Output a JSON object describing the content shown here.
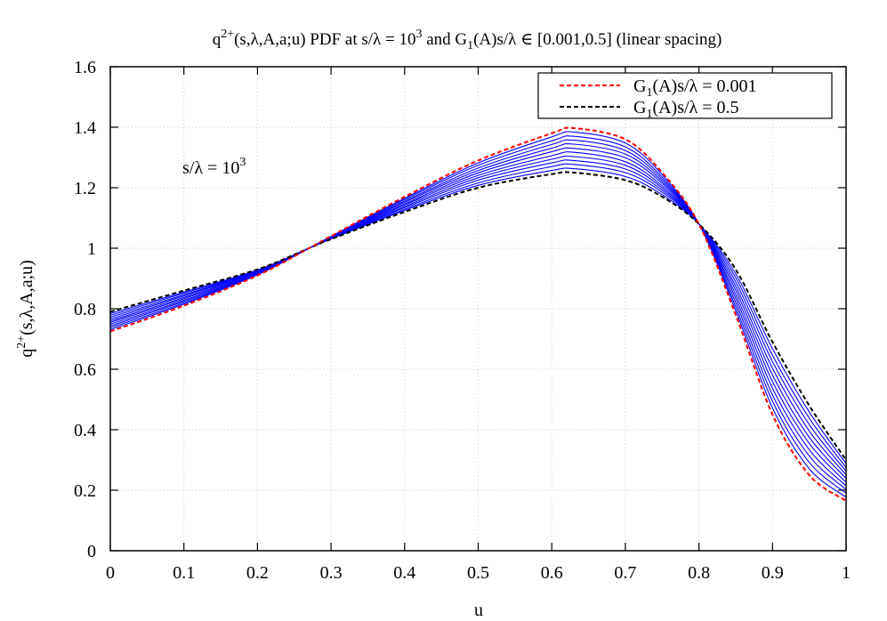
{
  "chart_data": {
    "type": "line",
    "title": "q^{2+}(s,λ,A,a;u) PDF at s/λ = 10^3 and G_1(A)s/λ ∈ [0.001,0.5] (linear spacing)",
    "title_parts": {
      "a": "q",
      "a_sup": "2+",
      "b": "(s,λ,A,a;u) PDF at s/λ = 10",
      "b_sup": "3",
      "c": " and G",
      "c_sub": "1",
      "d": "(A)s/λ ∈  [0.001,0.5] (linear spacing)"
    },
    "xlabel": "u",
    "ylabel": "q^{2+}(s,λ,A,a;u)",
    "ylabel_parts": {
      "a": "q",
      "sup": "2+",
      "b": "(s,λ,A,a;u)"
    },
    "annotation": {
      "text": "s/λ = 10^3",
      "a": "s/λ = 10",
      "sup": "3"
    },
    "xlim": [
      0,
      1
    ],
    "ylim": [
      0,
      1.6
    ],
    "xticks": [
      "0",
      "0.1",
      "0.2",
      "0.3",
      "0.4",
      "0.5",
      "0.6",
      "0.7",
      "0.8",
      "0.9",
      "1"
    ],
    "yticks": [
      "0",
      "0.2",
      "0.4",
      "0.6",
      "0.8",
      "1",
      "1.2",
      "1.4",
      "1.6"
    ],
    "grid": true,
    "legend_placement": "top-right",
    "colors": {
      "red": "#ff0000",
      "black": "#000000",
      "blue": "#0000ff",
      "grid": "#cccccc"
    },
    "x": [
      0,
      0.1,
      0.2,
      0.27,
      0.3,
      0.4,
      0.5,
      0.6,
      0.63,
      0.7,
      0.75,
      0.8,
      0.85,
      0.9,
      0.95,
      1.0
    ],
    "series": [
      {
        "name": "G_1(A)s/λ = 0.001",
        "label_a": "G",
        "label_sub": "1",
        "label_b": "(A)s/λ = 0.001",
        "color": "#ff0000",
        "style": "dashed",
        "legend": true,
        "values": [
          0.725,
          0.81,
          0.91,
          1.0,
          1.04,
          1.17,
          1.29,
          1.38,
          1.397,
          1.36,
          1.25,
          1.08,
          0.78,
          0.45,
          0.25,
          0.165
        ]
      },
      {
        "name": "G_1(A)s/λ = 0.5",
        "label_a": "G",
        "label_sub": "1",
        "label_b": "(A)s/λ = 0.5",
        "color": "#000000",
        "style": "dashed",
        "legend": true,
        "values": [
          0.79,
          0.86,
          0.93,
          1.0,
          1.03,
          1.12,
          1.2,
          1.245,
          1.25,
          1.225,
          1.17,
          1.08,
          0.93,
          0.69,
          0.48,
          0.3
        ]
      },
      {
        "color": "#0000ff",
        "style": "solid",
        "values": [
          0.731,
          0.815,
          0.912,
          1.0,
          1.039,
          1.165,
          1.282,
          1.368,
          1.384,
          1.348,
          1.243,
          1.08,
          0.794,
          0.472,
          0.271,
          0.177
        ]
      },
      {
        "color": "#0000ff",
        "style": "solid",
        "values": [
          0.737,
          0.819,
          0.914,
          1.0,
          1.038,
          1.161,
          1.274,
          1.355,
          1.37,
          1.335,
          1.235,
          1.08,
          0.807,
          0.494,
          0.292,
          0.19
        ]
      },
      {
        "color": "#0000ff",
        "style": "solid",
        "values": [
          0.743,
          0.824,
          0.915,
          1.0,
          1.037,
          1.156,
          1.265,
          1.343,
          1.357,
          1.323,
          1.228,
          1.08,
          0.821,
          0.515,
          0.313,
          0.202
        ]
      },
      {
        "color": "#0000ff",
        "style": "solid",
        "values": [
          0.749,
          0.828,
          0.917,
          1.0,
          1.036,
          1.152,
          1.257,
          1.331,
          1.344,
          1.311,
          1.221,
          1.08,
          0.835,
          0.537,
          0.334,
          0.214
        ]
      },
      {
        "color": "#0000ff",
        "style": "solid",
        "values": [
          0.755,
          0.833,
          0.919,
          1.0,
          1.035,
          1.147,
          1.249,
          1.319,
          1.33,
          1.299,
          1.214,
          1.08,
          0.848,
          0.559,
          0.355,
          0.226
        ]
      },
      {
        "color": "#0000ff",
        "style": "solid",
        "values": [
          0.76,
          0.837,
          0.921,
          1.0,
          1.035,
          1.143,
          1.241,
          1.306,
          1.317,
          1.286,
          1.206,
          1.08,
          0.862,
          0.581,
          0.375,
          0.239
        ]
      },
      {
        "color": "#0000ff",
        "style": "solid",
        "values": [
          0.766,
          0.842,
          0.923,
          1.0,
          1.034,
          1.138,
          1.233,
          1.294,
          1.303,
          1.274,
          1.199,
          1.08,
          0.875,
          0.603,
          0.396,
          0.251
        ]
      },
      {
        "color": "#0000ff",
        "style": "solid",
        "values": [
          0.772,
          0.846,
          0.925,
          1.0,
          1.033,
          1.134,
          1.225,
          1.282,
          1.29,
          1.262,
          1.192,
          1.08,
          0.889,
          0.625,
          0.417,
          0.263
        ]
      },
      {
        "color": "#0000ff",
        "style": "solid",
        "values": [
          0.778,
          0.851,
          0.926,
          1.0,
          1.032,
          1.129,
          1.216,
          1.27,
          1.277,
          1.25,
          1.185,
          1.08,
          0.903,
          0.646,
          0.438,
          0.275
        ]
      },
      {
        "color": "#0000ff",
        "style": "solid",
        "values": [
          0.784,
          0.855,
          0.928,
          1.0,
          1.031,
          1.125,
          1.208,
          1.257,
          1.263,
          1.237,
          1.177,
          1.08,
          0.916,
          0.668,
          0.459,
          0.288
        ]
      }
    ]
  }
}
